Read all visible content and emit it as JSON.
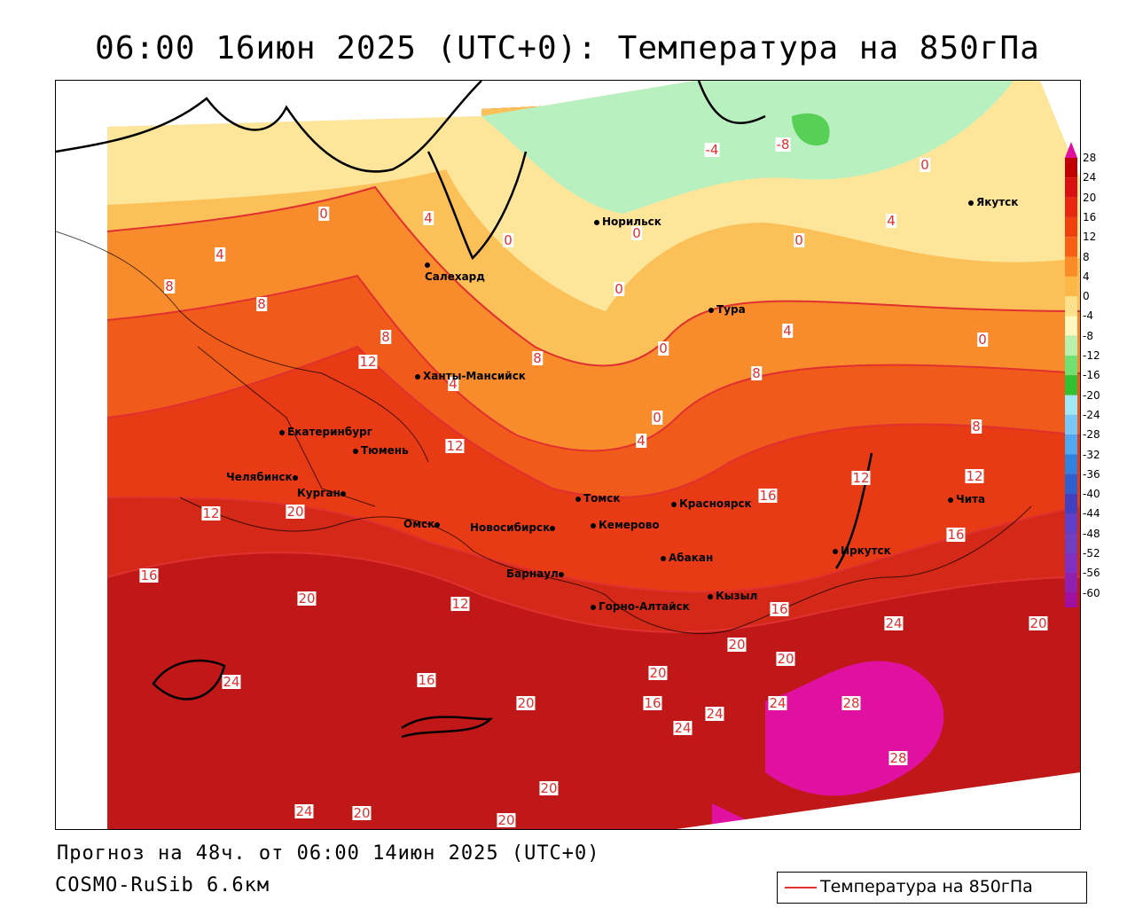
{
  "title": "06:00 16июн 2025 (UTC+0): Температура на 850гПа",
  "footer": {
    "forecast": "Прогноз на 48ч. от 06:00 14июн 2025 (UTC+0)",
    "model": "COSMO-RuSib 6.6км"
  },
  "legend": {
    "label": "Температура на 850гПа",
    "color": "#e03030"
  },
  "colorbar": {
    "ticks": [
      "28",
      "24",
      "20",
      "16",
      "12",
      "8",
      "4",
      "0",
      "-4",
      "-8",
      "-12",
      "-16",
      "-20",
      "-24",
      "-28",
      "-32",
      "-36",
      "-40",
      "-44",
      "-48",
      "-52",
      "-56",
      "-60"
    ],
    "colors": [
      "#c00000",
      "#d81010",
      "#e82810",
      "#f04010",
      "#f86018",
      "#fc8c28",
      "#fcb848",
      "#fce08c",
      "#fff8c0",
      "#b8f0b0",
      "#70e070",
      "#30c030",
      "#a0e8f8",
      "#78c8f8",
      "#50a8f0",
      "#3080e0",
      "#3060d0",
      "#4040c0",
      "#6040c8",
      "#7040c0",
      "#8030c0",
      "#9020b0",
      "#a010a0"
    ]
  },
  "cities": [
    {
      "name": "Норильск"
    },
    {
      "name": "Якутск"
    },
    {
      "name": "Салехард"
    },
    {
      "name": "Тура"
    },
    {
      "name": "Ханты-Мансийск"
    },
    {
      "name": "Екатеринбург"
    },
    {
      "name": "Тюмень"
    },
    {
      "name": "Челябинск"
    },
    {
      "name": "Курган"
    },
    {
      "name": "Томск"
    },
    {
      "name": "Красноярск"
    },
    {
      "name": "Омск"
    },
    {
      "name": "Новосибирск"
    },
    {
      "name": "Кемерово"
    },
    {
      "name": "Абакан"
    },
    {
      "name": "Барнаул"
    },
    {
      "name": "Горно-Алтайск"
    },
    {
      "name": "Кызыл"
    },
    {
      "name": "Иркутск"
    },
    {
      "name": "Чита"
    }
  ],
  "contour_labels": [
    "-4",
    "-8",
    "0",
    "0",
    "0",
    "4",
    "0",
    "0",
    "0",
    "4",
    "4",
    "8",
    "8",
    "8",
    "12",
    "4",
    "8",
    "0",
    "4",
    "0",
    "0",
    "4",
    "16",
    "12",
    "8",
    "8",
    "12",
    "12",
    "20",
    "16",
    "12",
    "16",
    "20",
    "16",
    "20",
    "20",
    "24",
    "24",
    "20",
    "20",
    "24",
    "24",
    "28",
    "28",
    "20",
    "20",
    "24",
    "20",
    "16",
    "12",
    "16",
    "20",
    "24"
  ]
}
